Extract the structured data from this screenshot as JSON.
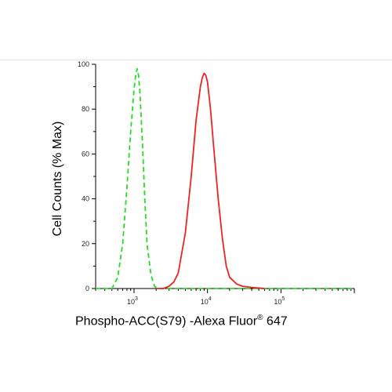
{
  "chart_data": {
    "type": "line",
    "title": "",
    "xlabel_main": "Phospho-ACC(S79) -Alexa Fluor",
    "xlabel_sup": "®",
    "xlabel_tail": " 647",
    "ylabel": "Cell Counts (% Max)",
    "x_scale": "log",
    "xlim": [
      300,
      1000000
    ],
    "ylim": [
      0,
      100
    ],
    "x_ticks": [
      {
        "base": "10",
        "exp": "3",
        "value": 1000
      },
      {
        "base": "10",
        "exp": "4",
        "value": 10000
      },
      {
        "base": "10",
        "exp": "5",
        "value": 100000
      }
    ],
    "y_ticks": [
      "0",
      "20",
      "40",
      "60",
      "80",
      "100"
    ],
    "y_tick_values": [
      0,
      20,
      40,
      60,
      80,
      100
    ],
    "grid": false,
    "legend": "none",
    "series": [
      {
        "color": "#22dd22",
        "style": "dashed",
        "x": [
          300,
          500,
          600,
          700,
          800,
          900,
          1000,
          1050,
          1100,
          1150,
          1200,
          1300,
          1400,
          1500,
          1700,
          1900,
          2100,
          100000,
          1000000
        ],
        "y": [
          0,
          0,
          5,
          20,
          45,
          70,
          89,
          95,
          98,
          95,
          88,
          65,
          40,
          20,
          6,
          1,
          0,
          0,
          0
        ]
      },
      {
        "color": "#ee2222",
        "style": "solid",
        "x": [
          2000,
          2500,
          3000,
          3500,
          4000,
          5000,
          6000,
          7000,
          8000,
          8500,
          9000,
          9500,
          10000,
          11000,
          12000,
          14000,
          16000,
          18000,
          20000,
          25000,
          30000,
          40000,
          50000,
          60000
        ],
        "y": [
          0,
          0,
          1,
          3,
          7,
          25,
          50,
          75,
          90,
          94,
          96,
          95,
          92,
          80,
          65,
          40,
          22,
          10,
          5,
          2,
          1,
          0.5,
          0.2,
          0
        ]
      }
    ]
  }
}
